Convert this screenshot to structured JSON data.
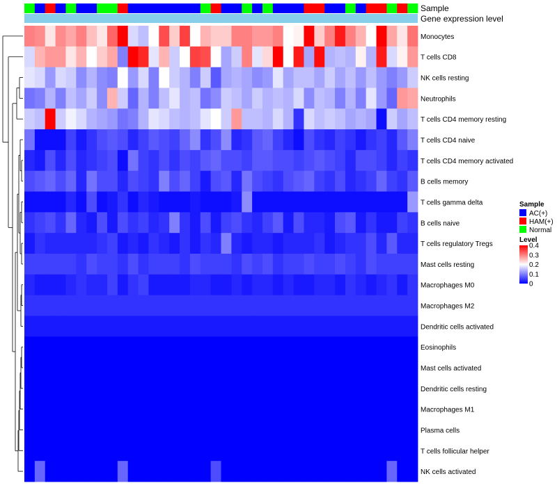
{
  "chart_data": {
    "type": "heatmap",
    "title": "",
    "annotation_tracks": [
      "Sample",
      "Gene expression level"
    ],
    "sample_annotation": [
      "Normal",
      "AC(+)",
      "HAM(+)",
      "AC(+)",
      "Normal",
      "AC(+)",
      "AC(+)",
      "Normal",
      "Normal",
      "HAM(+)",
      "AC(+)",
      "AC(+)",
      "AC(+)",
      "AC(+)",
      "AC(+)",
      "AC(+)",
      "AC(+)",
      "Normal",
      "HAM(+)",
      "AC(+)",
      "AC(+)",
      "Normal",
      "AC(+)",
      "Normal",
      "AC(+)",
      "AC(+)",
      "AC(+)",
      "HAM(+)",
      "HAM(+)",
      "AC(+)",
      "AC(+)",
      "Normal",
      "AC(+)",
      "HAM(+)",
      "HAM(+)",
      "Normal",
      "HAM(+)",
      "Normal"
    ],
    "rows": [
      "Monocytes",
      "T cells CD8",
      "NK cells resting",
      "Neutrophils",
      "T cells CD4 memory resting",
      "T cells CD4 naive",
      "T cells CD4 memory activated",
      "B cells memory",
      "T cells gamma delta",
      "B cells naive",
      "T cells regulatory  Tregs",
      "Mast cells resting",
      "Macrophages M0",
      "Macrophages M2",
      "Dendritic cells activated",
      "Eosinophils",
      "Mast cells activated",
      "Dendritic cells resting",
      "Macrophages M1",
      "Plasma cells",
      "T cells follicular helper",
      "NK cells activated"
    ],
    "values": [
      [
        0.3,
        0.29,
        0.22,
        0.29,
        0.27,
        0.3,
        0.25,
        0.22,
        0.32,
        0.4,
        0.17,
        0.15,
        0.2,
        0.34,
        0.24,
        0.35,
        0.2,
        0.26,
        0.24,
        0.24,
        0.3,
        0.3,
        0.28,
        0.28,
        0.3,
        0.2,
        0.21,
        0.4,
        0.24,
        0.3,
        0.38,
        0.3,
        0.26,
        0.2,
        0.4,
        0.27,
        0.22,
        0.31
      ],
      [
        0.17,
        0.26,
        0.28,
        0.28,
        0.22,
        0.26,
        0.2,
        0.24,
        0.27,
        0.1,
        0.4,
        0.37,
        0.18,
        0.26,
        0.16,
        0.2,
        0.35,
        0.34,
        0.2,
        0.13,
        0.16,
        0.3,
        0.18,
        0.23,
        0.4,
        0.2,
        0.38,
        0.13,
        0.39,
        0.14,
        0.15,
        0.14,
        0.21,
        0.14,
        0.38,
        0.17,
        0.21,
        0.28
      ],
      [
        0.18,
        0.17,
        0.12,
        0.17,
        0.16,
        0.11,
        0.14,
        0.11,
        0.1,
        0.2,
        0.12,
        0.17,
        0.1,
        0.2,
        0.16,
        0.14,
        0.1,
        0.16,
        0.07,
        0.13,
        0.14,
        0.13,
        0.11,
        0.12,
        0.18,
        0.13,
        0.15,
        0.15,
        0.13,
        0.16,
        0.13,
        0.15,
        0.12,
        0.15,
        0.12,
        0.1,
        0.12,
        0.16
      ],
      [
        0.09,
        0.1,
        0.14,
        0.1,
        0.15,
        0.13,
        0.16,
        0.11,
        0.26,
        0.16,
        0.08,
        0.14,
        0.1,
        0.15,
        0.18,
        0.14,
        0.15,
        0.09,
        0.11,
        0.16,
        0.15,
        0.13,
        0.16,
        0.14,
        0.15,
        0.14,
        0.17,
        0.11,
        0.15,
        0.14,
        0.1,
        0.14,
        0.1,
        0.18,
        0.12,
        0.08,
        0.28,
        0.27
      ],
      [
        0.16,
        0.15,
        0.4,
        0.16,
        0.19,
        0.17,
        0.14,
        0.13,
        0.12,
        0.09,
        0.1,
        0.14,
        0.18,
        0.17,
        0.15,
        0.14,
        0.15,
        0.18,
        0.2,
        0.16,
        0.28,
        0.15,
        0.15,
        0.14,
        0.17,
        0.14,
        0.04,
        0.17,
        0.15,
        0.16,
        0.15,
        0.13,
        0.14,
        0.13,
        0.01,
        0.16,
        0.13,
        0.15
      ],
      [
        0.09,
        0.01,
        0.01,
        0.01,
        0.05,
        0.02,
        0.04,
        0.06,
        0.07,
        0.06,
        0.03,
        0.05,
        0.07,
        0.06,
        0.05,
        0.08,
        0.11,
        0.04,
        0.06,
        0.11,
        0.03,
        0.04,
        0.07,
        0.08,
        0.05,
        0.03,
        0.01,
        0.06,
        0.04,
        0.03,
        0.05,
        0.04,
        0.02,
        0.04,
        0.05,
        0.03,
        0.07,
        0.1
      ],
      [
        0.03,
        0.02,
        0.06,
        0.03,
        0.06,
        0.03,
        0.04,
        0.05,
        0.06,
        0.01,
        0.09,
        0.05,
        0.04,
        0.06,
        0.04,
        0.06,
        0.05,
        0.07,
        0.08,
        0.06,
        0.06,
        0.05,
        0.07,
        0.07,
        0.06,
        0.06,
        0.05,
        0.06,
        0.07,
        0.06,
        0.05,
        0.03,
        0.06,
        0.06,
        0.05,
        0.03,
        0.05,
        0.04
      ],
      [
        0.06,
        0.07,
        0.08,
        0.06,
        0.08,
        0.03,
        0.09,
        0.06,
        0.06,
        0.03,
        0.06,
        0.05,
        0.04,
        0.1,
        0.06,
        0.08,
        0.05,
        0.02,
        0.06,
        0.07,
        0.03,
        0.09,
        0.06,
        0.05,
        0.04,
        0.06,
        0.07,
        0.08,
        0.05,
        0.04,
        0.06,
        0.03,
        0.04,
        0.05,
        0.08,
        0.05,
        0.04,
        0.07
      ],
      [
        0.01,
        0.01,
        0.01,
        0.01,
        0.03,
        0.01,
        0.06,
        0.01,
        0.02,
        0.04,
        0.01,
        0.03,
        0.02,
        0.01,
        0.01,
        0.01,
        0.02,
        0.01,
        0.01,
        0.01,
        0.02,
        0.11,
        0.01,
        0.01,
        0.01,
        0.01,
        0.01,
        0.01,
        0.01,
        0.01,
        0.01,
        0.01,
        0.01,
        0.01,
        0.01,
        0.01,
        0.01,
        0.12
      ],
      [
        0.04,
        0.05,
        0.06,
        0.04,
        0.08,
        0.03,
        0.02,
        0.06,
        0.02,
        0.06,
        0.04,
        0.05,
        0.03,
        0.04,
        0.1,
        0.04,
        0.02,
        0.06,
        0.02,
        0.05,
        0.06,
        0.04,
        0.03,
        0.05,
        0.07,
        0.02,
        0.06,
        0.03,
        0.03,
        0.02,
        0.06,
        0.07,
        0.02,
        0.04,
        0.02,
        0.02,
        0.05,
        0.04
      ],
      [
        0.02,
        0.04,
        0.03,
        0.03,
        0.03,
        0.03,
        0.03,
        0.04,
        0.05,
        0.02,
        0.03,
        0.02,
        0.04,
        0.03,
        0.02,
        0.04,
        0.02,
        0.04,
        0.03,
        0.1,
        0.03,
        0.02,
        0.03,
        0.03,
        0.02,
        0.03,
        0.03,
        0.03,
        0.04,
        0.02,
        0.03,
        0.04,
        0.04,
        0.06,
        0.03,
        0.07,
        0.03,
        0.03
      ],
      [
        0.05,
        0.05,
        0.05,
        0.05,
        0.05,
        0.04,
        0.06,
        0.05,
        0.05,
        0.04,
        0.06,
        0.04,
        0.05,
        0.05,
        0.05,
        0.04,
        0.06,
        0.05,
        0.05,
        0.05,
        0.04,
        0.06,
        0.05,
        0.06,
        0.04,
        0.05,
        0.05,
        0.06,
        0.05,
        0.05,
        0.06,
        0.05,
        0.04,
        0.06,
        0.05,
        0.05,
        0.05,
        0.05
      ],
      [
        0.03,
        0.02,
        0.02,
        0.02,
        0.03,
        0.04,
        0.03,
        0.03,
        0.05,
        0.02,
        0.04,
        0.05,
        0.02,
        0.02,
        0.02,
        0.02,
        0.03,
        0.03,
        0.02,
        0.02,
        0.03,
        0.02,
        0.03,
        0.03,
        0.02,
        0.03,
        0.02,
        0.02,
        0.03,
        0.03,
        0.02,
        0.04,
        0.03,
        0.02,
        0.03,
        0.04,
        0.02,
        0.04
      ],
      [
        0.04,
        0.04,
        0.04,
        0.04,
        0.04,
        0.04,
        0.04,
        0.04,
        0.04,
        0.04,
        0.04,
        0.04,
        0.04,
        0.04,
        0.04,
        0.04,
        0.04,
        0.04,
        0.04,
        0.04,
        0.04,
        0.04,
        0.04,
        0.04,
        0.04,
        0.04,
        0.04,
        0.04,
        0.04,
        0.04,
        0.04,
        0.04,
        0.04,
        0.04,
        0.04,
        0.04,
        0.04,
        0.04
      ],
      [
        0.02,
        0.02,
        0.02,
        0.02,
        0.02,
        0.02,
        0.02,
        0.02,
        0.02,
        0.02,
        0.02,
        0.02,
        0.02,
        0.02,
        0.02,
        0.02,
        0.02,
        0.02,
        0.02,
        0.02,
        0.02,
        0.02,
        0.02,
        0.02,
        0.02,
        0.02,
        0.02,
        0.02,
        0.02,
        0.02,
        0.02,
        0.02,
        0.02,
        0.02,
        0.02,
        0.02,
        0.02,
        0.02
      ],
      [
        0,
        0,
        0,
        0,
        0,
        0,
        0,
        0,
        0,
        0,
        0,
        0,
        0,
        0,
        0,
        0,
        0,
        0,
        0,
        0,
        0,
        0,
        0,
        0,
        0,
        0,
        0,
        0,
        0,
        0,
        0,
        0,
        0,
        0,
        0,
        0,
        0,
        0
      ],
      [
        0,
        0,
        0,
        0,
        0,
        0,
        0,
        0,
        0,
        0,
        0,
        0,
        0,
        0,
        0,
        0,
        0,
        0,
        0,
        0,
        0,
        0,
        0,
        0,
        0,
        0,
        0,
        0,
        0,
        0,
        0,
        0,
        0,
        0,
        0,
        0,
        0,
        0
      ],
      [
        0,
        0,
        0,
        0,
        0,
        0,
        0,
        0,
        0,
        0,
        0,
        0,
        0,
        0,
        0,
        0,
        0,
        0,
        0,
        0,
        0,
        0,
        0,
        0,
        0,
        0,
        0,
        0,
        0,
        0,
        0,
        0,
        0,
        0,
        0,
        0,
        0,
        0
      ],
      [
        0,
        0,
        0,
        0,
        0,
        0,
        0,
        0,
        0,
        0,
        0,
        0,
        0,
        0,
        0,
        0,
        0,
        0,
        0,
        0,
        0,
        0,
        0,
        0,
        0,
        0,
        0,
        0,
        0,
        0,
        0,
        0,
        0,
        0,
        0,
        0,
        0,
        0
      ],
      [
        0,
        0,
        0,
        0,
        0,
        0,
        0,
        0,
        0,
        0,
        0,
        0,
        0,
        0,
        0,
        0,
        0,
        0,
        0,
        0,
        0,
        0,
        0,
        0,
        0,
        0,
        0,
        0,
        0,
        0,
        0,
        0,
        0,
        0,
        0,
        0,
        0,
        0
      ],
      [
        0,
        0,
        0,
        0,
        0,
        0,
        0,
        0,
        0,
        0,
        0,
        0,
        0,
        0,
        0,
        0,
        0,
        0,
        0,
        0,
        0,
        0,
        0,
        0,
        0,
        0,
        0,
        0,
        0,
        0,
        0,
        0,
        0,
        0,
        0,
        0,
        0,
        0
      ],
      [
        0,
        0.08,
        0,
        0,
        0,
        0,
        0,
        0,
        0,
        0.08,
        0,
        0,
        0,
        0,
        0,
        0,
        0,
        0,
        0.06,
        0,
        0,
        0,
        0,
        0,
        0,
        0,
        0,
        0,
        0,
        0,
        0,
        0,
        0,
        0,
        0,
        0.08,
        0,
        0
      ]
    ],
    "legend_sample": {
      "title": "Sample",
      "entries": [
        {
          "label": "AC(+)",
          "color": "#0000FF"
        },
        {
          "label": "HAM(+)",
          "color": "#FF0000"
        },
        {
          "label": "Normal",
          "color": "#00FF00"
        }
      ]
    },
    "legend_level": {
      "title": "Level",
      "ticks": [
        "0.4",
        "0.3",
        "0.2",
        "0.1",
        "0"
      ],
      "range": [
        0,
        0.4
      ],
      "colors": [
        "#0000FF",
        "#FFFFFF",
        "#FF0000"
      ]
    },
    "gene_expression_color": "#87CEEB"
  }
}
